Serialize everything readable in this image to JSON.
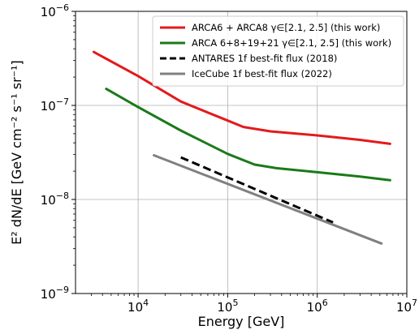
{
  "chart_data": {
    "type": "line",
    "title": "",
    "xlabel": "Energy [GeV]",
    "ylabel": "E² dN/dE [GeV cm⁻² s⁻¹ sr⁻¹]",
    "x_scale": "log",
    "y_scale": "log",
    "xlim": [
      2000,
      10000000
    ],
    "ylim": [
      1e-09,
      1e-06
    ],
    "grid": true,
    "legend_position": "top-right",
    "x_ticks": [
      {
        "value": 10000,
        "base": "10",
        "exp": "4"
      },
      {
        "value": 100000,
        "base": "10",
        "exp": "5"
      },
      {
        "value": 1000000,
        "base": "10",
        "exp": "6"
      },
      {
        "value": 10000000,
        "base": "10",
        "exp": "7"
      }
    ],
    "y_ticks": [
      {
        "value": 1e-09,
        "base": "10",
        "exp": "−9"
      },
      {
        "value": 1e-08,
        "base": "10",
        "exp": "−8"
      },
      {
        "value": 1e-07,
        "base": "10",
        "exp": "−7"
      },
      {
        "value": 1e-06,
        "base": "10",
        "exp": "−6"
      }
    ],
    "series": [
      {
        "name": "ARCA6 + ARCA8 γ∈[2.1, 2.5] (this work)",
        "color": "#e31a1c",
        "style": "solid",
        "x": [
          3200,
          10000,
          30000,
          100000,
          150000,
          300000,
          1000000,
          3000000,
          6500000
        ],
        "y": [
          3.7e-07,
          2.05e-07,
          1.1e-07,
          6.9e-08,
          5.9e-08,
          5.3e-08,
          4.8e-08,
          4.3e-08,
          3.9e-08
        ]
      },
      {
        "name": "ARCA 6+8+19+21 γ∈[2.1, 2.5] (this work)",
        "color": "#1a7a1a",
        "style": "solid",
        "x": [
          4400,
          10000,
          30000,
          100000,
          200000,
          350000,
          1000000,
          3000000,
          6500000
        ],
        "y": [
          1.5e-07,
          9.6e-08,
          5.4e-08,
          3.05e-08,
          2.35e-08,
          2.15e-08,
          1.95e-08,
          1.75e-08,
          1.6e-08
        ]
      },
      {
        "name": "ANTARES 1f best-fit flux (2018)",
        "color": "#000000",
        "style": "dashed",
        "x": [
          30000,
          1500000
        ],
        "y": [
          2.8e-08,
          5.7e-09
        ]
      },
      {
        "name": "IceCube 1f best-fit flux (2022)",
        "color": "#808080",
        "style": "solid",
        "x": [
          15000,
          5200000
        ],
        "y": [
          2.95e-08,
          3.4e-09
        ]
      }
    ]
  }
}
